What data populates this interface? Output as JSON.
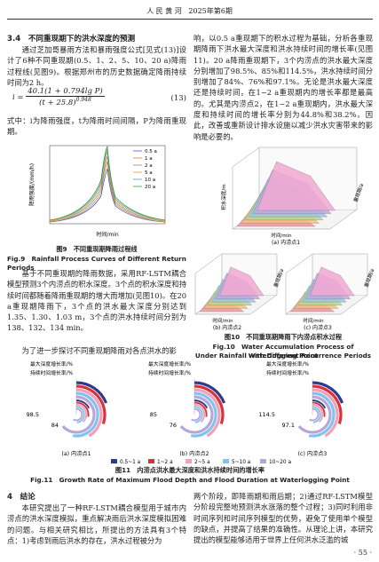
{
  "header": {
    "journal": "人 民 黄 河",
    "issue": "2025年第6期"
  },
  "section34": {
    "title": "3.4　不同重现期下的洪水深度的预测",
    "para1": "通过芝加哥暴雨方法和暴雨强度公式[见式(13)]设计了6种不同重现期(0.5、1、2、5、10、20 a)降雨过程线(见图9)。根据郑州市的历史数据确定降雨持续时间为2 h。",
    "formula": {
      "lhs": "i =",
      "numerator": "40.1(1 + 0.794lg P)",
      "denominator": "(t + 25.8)",
      "exponent": "0.948",
      "number": "(13)"
    },
    "para2": "式中：i为降雨强度，t为降雨时间间隔，P为降雨重现期。",
    "para3": "基于不同重现期的降雨数据，采用RF-LSTM耦合模型预测3个内涝点的积水深度。3个点的积水深度和持续时间都随着降雨重现期的增大而增加(见图10)。在20 a重现期降雨下，3个点的洪水最大深度分别达到1.35、1.30、1.03 m，3个点的洪水持续时间分别为138、132、134 min。",
    "para4": "为了进一步探讨不同重现期降雨对各点洪水的影",
    "para5": "响，以0.5 a重现期下的积水过程为基础，分析各重现期降雨下洪水最大深度和洪水持续时间的增长率(见图11)。20 a降雨重现期下，3个内涝点的洪水最大深度分别增加了98.5%、85%和114.5%，洪水持续时间分别增加了84%、76%和97.1%。无论是洪水最大深度还是持续时间，在1~2 a重现期内的增长率都是最高的。尤其是内涝点2，在1~2 a重现期内，洪水最大深度和持续时间的增长率分别为44.8%和38.2%。因此，改善或重新设计排水设施以减少洪水灾害带来的影响是必要的。"
  },
  "fig9": {
    "legend": [
      "0.5 a",
      "1 a",
      "2 a",
      "5 a",
      "10 a",
      "20 a"
    ],
    "ylabel": "降雨强度/(mm/h)",
    "xlabel": "时间/min",
    "caption_cn": "图9　不同重现期降雨过程线",
    "caption_en": "Fig.9　Rainfall Process Curves of Different Return Periods"
  },
  "fig10": {
    "xlabel": "时间/min",
    "zlabel": "重现期/a",
    "ylabel": "积水深度/m",
    "panels": [
      "(a) 内涝点1",
      "(b) 内涝点2",
      "(c) 内涝点3"
    ],
    "caption_cn": "图10　不同重现期降雨下内涝点积水过程",
    "caption_en1": "Fig.10　Water Accumulation Process of Waterlogging Point",
    "caption_en2": "Under Rainfall with Different Recurrence Periods"
  },
  "fig11": {
    "depth_label": "最大深度增长率/%",
    "duration_label": "持续时间增长率/%",
    "panels": [
      {
        "depth": "98.5",
        "duration": "84",
        "sub": "(a) 内涝点1"
      },
      {
        "depth": "85",
        "duration": "76",
        "sub": "(b) 内涝点2"
      },
      {
        "depth": "114.5",
        "duration": "97.1",
        "sub": "(c) 内涝点3"
      }
    ],
    "legend": [
      "0.5~1 a",
      "1~2 a",
      "2~5 a",
      "5~10 a",
      "10~20 a"
    ],
    "caption_cn": "图11　内涝点洪水最大深度和洪水持续时间的增长率",
    "caption_en": "Fig.11　Growth Rate of Maximum Flood Depth and Flood Duration at Waterlogging Point"
  },
  "section4": {
    "title": "4　结论",
    "para1": "本研究提出了一种RF-LSTM耦合模型用于城市内涝点的洪水深度模拟，重点解决雨后洪水深度模拟困难的问题。与相关研究相比，所提出的方法具有3个特点：1)考虑到雨后洪水的存在，洪水过程被分为",
    "para2": "两个阶段，即降雨期和雨后期；2)通过RF-LSTM模型分阶段完整地预测洪水涨落的整个过程；3)同时利用非时间序列和时间序列模型的优势，避免了使用单个模型的缺点，并提高了结果的准确性。从理论上讲，本研究提出的模型能够适用于世界上任何洪水泛滥的城"
  },
  "footer": {
    "page": "· 55 ·"
  }
}
